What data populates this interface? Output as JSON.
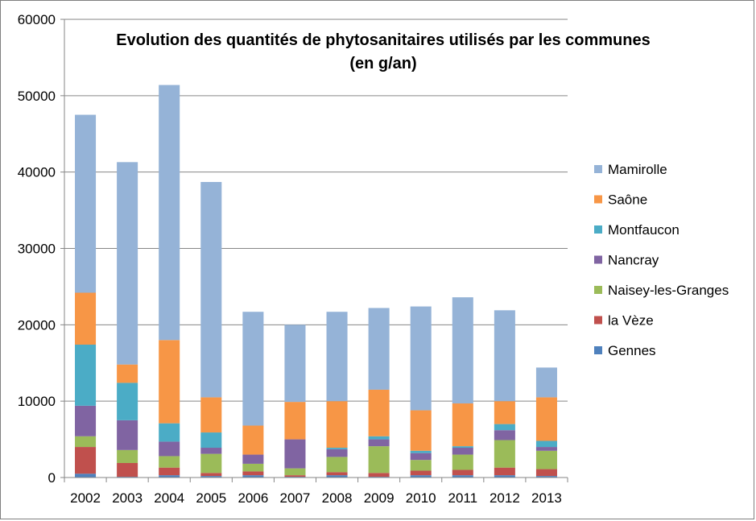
{
  "chart_data": {
    "type": "bar",
    "stacked": true,
    "title_lines": [
      "Evolution des quantités de phytosanitaires utilisés par les communes",
      "(en g/an)"
    ],
    "xlabel": "",
    "ylabel": "",
    "ylim": [
      0,
      60000
    ],
    "yticks": [
      0,
      10000,
      20000,
      30000,
      40000,
      50000,
      60000
    ],
    "ytick_labels": [
      "0",
      "10000",
      "20000",
      "30000",
      "40000",
      "50000",
      "60000"
    ],
    "grid": true,
    "legend_position": "right",
    "categories": [
      "2002",
      "2003",
      "2004",
      "2005",
      "2006",
      "2007",
      "2008",
      "2009",
      "2010",
      "2011",
      "2012",
      "2013"
    ],
    "series": [
      {
        "name": "Gennes",
        "color": "#4f81bd",
        "values": [
          500,
          100,
          300,
          200,
          300,
          100,
          300,
          100,
          300,
          300,
          300,
          200
        ]
      },
      {
        "name": "la Vèze",
        "color": "#c0504d",
        "values": [
          3500,
          1800,
          1000,
          400,
          500,
          200,
          400,
          500,
          600,
          700,
          1000,
          900
        ]
      },
      {
        "name": "Naisey-les-Granges",
        "color": "#9bbb59",
        "values": [
          1400,
          1700,
          1500,
          2500,
          1000,
          900,
          2000,
          3500,
          1400,
          2000,
          3600,
          2400
        ]
      },
      {
        "name": "Nancray",
        "color": "#8064a2",
        "values": [
          4000,
          3900,
          1900,
          800,
          1200,
          3800,
          1000,
          900,
          900,
          900,
          1300,
          500
        ]
      },
      {
        "name": "Montfaucon",
        "color": "#4bacc6",
        "values": [
          8000,
          4900,
          2400,
          2000,
          0,
          0,
          200,
          400,
          300,
          200,
          800,
          800
        ]
      },
      {
        "name": "Saône",
        "color": "#f79646",
        "values": [
          6800,
          2400,
          10900,
          4600,
          3800,
          4900,
          6100,
          6100,
          5300,
          5600,
          3000,
          5700
        ]
      },
      {
        "name": "Mamirolle",
        "color": "#95b3d7",
        "values": [
          23300,
          26500,
          33400,
          28200,
          14900,
          10100,
          11700,
          10700,
          13600,
          13900,
          11900,
          3900
        ]
      }
    ]
  }
}
